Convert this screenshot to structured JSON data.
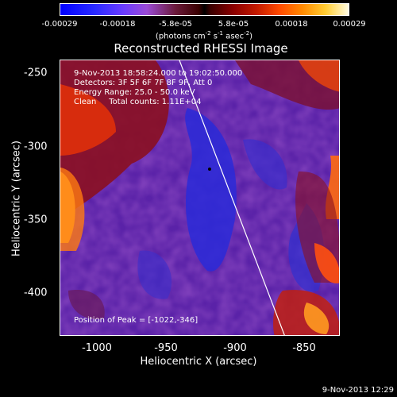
{
  "colorbar": {
    "ticks": [
      "-0.00029",
      "-0.00018",
      "-5.8e-05",
      "5.8e-05",
      "0.00018",
      "0.00029"
    ],
    "unit_prefix": "(photons cm",
    "unit_exp1": "-2",
    "unit_mid1": " s",
    "unit_exp2": "-1",
    "unit_mid2": " asec",
    "unit_exp3": "-2",
    "unit_suffix": ")"
  },
  "title": "Reconstructed RHESSI Image",
  "info": {
    "line1": "9-Nov-2013 18:58:24.000 to 19:02:50.000",
    "line2": "Detectors: 3F 5F 6F 7F 8F 9F, Att 0",
    "line3": "Energy Range: 25.0 - 50.0 keV",
    "line4": "Clean     Total counts: 1.11E+04"
  },
  "peak_label": "Position of Peak = [-1022,-346]",
  "axes": {
    "xlabel": "Heliocentric X (arcsec)",
    "ylabel": "Heliocentric Y (arcsec)",
    "xticks": [
      "-1000",
      "-950",
      "-900",
      "-850"
    ],
    "yticks": [
      "-250",
      "-300",
      "-350",
      "-400"
    ]
  },
  "timestamp": "9-Nov-2013 12:29",
  "colors": {
    "background": "#000000",
    "axis": "#ffffff",
    "limb_line": "#ffffff"
  }
}
